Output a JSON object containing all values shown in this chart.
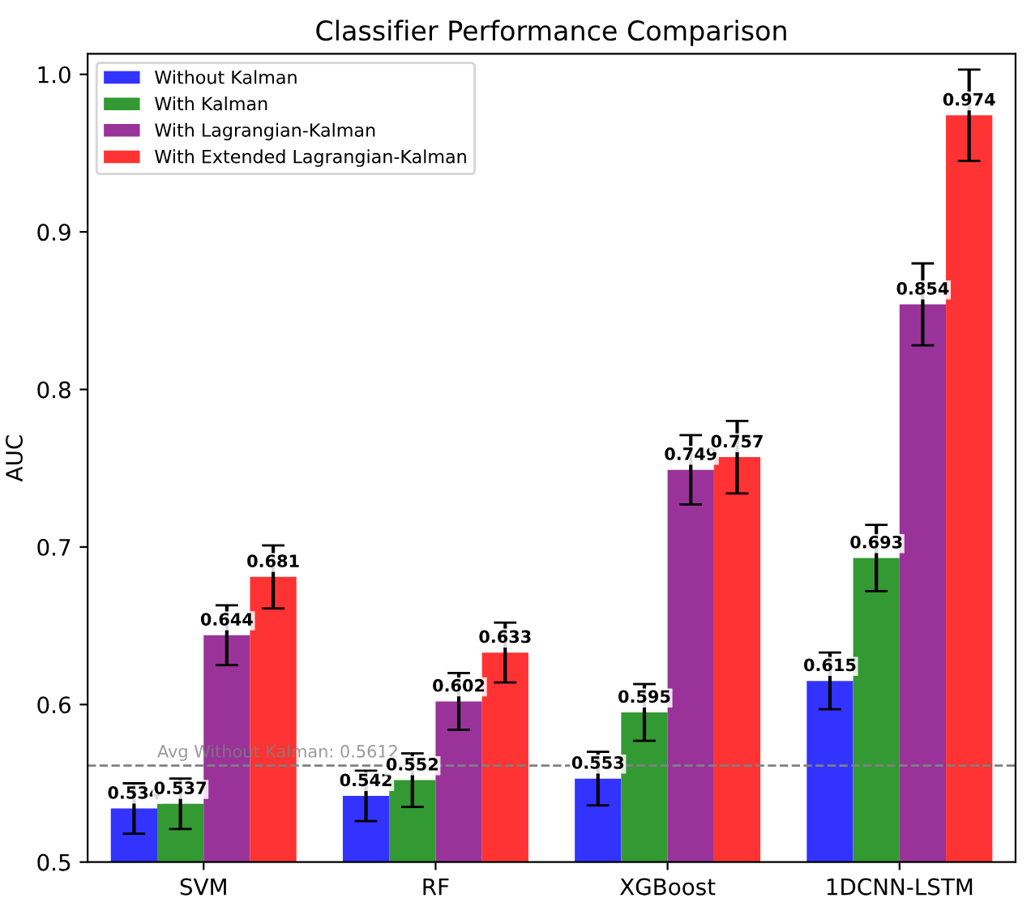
{
  "chart_data": {
    "type": "bar",
    "title": "Classifier Performance Comparison",
    "ylabel": "AUC",
    "categories": [
      "SVM",
      "RF",
      "XGBoost",
      "1DCNN-LSTM"
    ],
    "series": [
      {
        "name": "Without Kalman",
        "color": "#3333ff",
        "values": [
          0.534,
          0.542,
          0.553,
          0.615
        ],
        "errors": [
          0.016,
          0.016,
          0.017,
          0.018
        ]
      },
      {
        "name": "With Kalman",
        "color": "#339933",
        "values": [
          0.537,
          0.552,
          0.595,
          0.693
        ],
        "errors": [
          0.016,
          0.017,
          0.018,
          0.021
        ]
      },
      {
        "name": "With Lagrangian-Kalman",
        "color": "#993399",
        "values": [
          0.644,
          0.602,
          0.749,
          0.854
        ],
        "errors": [
          0.019,
          0.018,
          0.022,
          0.026
        ]
      },
      {
        "name": "With Extended Lagrangian-Kalman",
        "color": "#ff3333",
        "values": [
          0.681,
          0.633,
          0.757,
          0.974
        ],
        "errors": [
          0.02,
          0.019,
          0.023,
          0.029
        ]
      }
    ],
    "ylim": [
      0.5,
      1.013
    ],
    "yticks": [
      {
        "value": 0.5,
        "label": "0.5"
      },
      {
        "value": 0.6,
        "label": "0.6"
      },
      {
        "value": 0.7,
        "label": "0.7"
      },
      {
        "value": 0.8,
        "label": "0.8"
      },
      {
        "value": 0.9,
        "label": "0.9"
      },
      {
        "value": 1.0,
        "label": "1.0"
      }
    ],
    "ref_lines": [
      {
        "axis": "y",
        "value": 0.5612,
        "label": "Avg Without Kalman: 0.5612",
        "color": "#808080",
        "line_style": "dashed"
      }
    ],
    "data_labels": true,
    "legend": "top left",
    "grid": false
  }
}
